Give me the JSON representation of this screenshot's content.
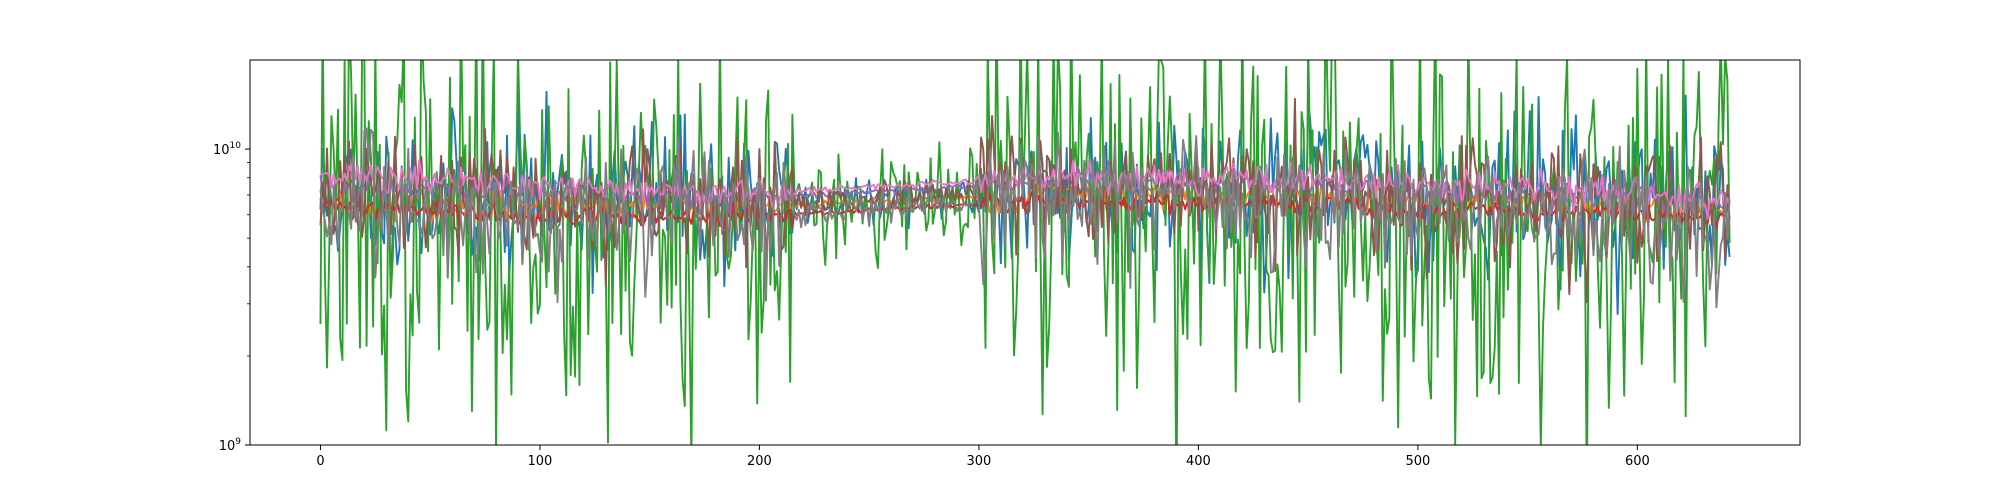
{
  "chart_data": {
    "type": "line",
    "title": "",
    "xlabel": "",
    "ylabel": "",
    "x_range": [
      0,
      642
    ],
    "xlim": [
      -32.1,
      674.1
    ],
    "ylim": [
      1000000000,
      20000000000
    ],
    "yscale": "log",
    "grid": false,
    "legend": "none",
    "x_ticks": [
      0,
      100,
      200,
      300,
      400,
      500,
      600
    ],
    "x_tick_labels": [
      "0",
      "100",
      "200",
      "300",
      "400",
      "500",
      "600"
    ],
    "y_ticks": [
      1000000000,
      10000000000
    ],
    "y_tick_labels": [
      {
        "base": "10",
        "exp": "9"
      },
      {
        "base": "10",
        "exp": "10"
      }
    ],
    "series": [
      {
        "color": "#1f77b4",
        "profile": [
          [
            0,
            6800000000.0
          ],
          [
            100,
            6900000000.0
          ],
          [
            200,
            6700000000.0
          ],
          [
            260,
            6600000000.0
          ],
          [
            340,
            7300000000.0
          ],
          [
            420,
            7400000000.0
          ],
          [
            500,
            7100000000.0
          ],
          [
            600,
            6800000000.0
          ],
          [
            642,
            6400000000.0
          ]
        ],
        "noise": 0.3,
        "seed": 11
      },
      {
        "color": "#ff7f0e",
        "profile": [
          [
            0,
            6600000000.0
          ],
          [
            100,
            6400000000.0
          ],
          [
            200,
            6300000000.0
          ],
          [
            260,
            6700000000.0
          ],
          [
            340,
            7100000000.0
          ],
          [
            420,
            7000000000.0
          ],
          [
            500,
            6800000000.0
          ],
          [
            600,
            6500000000.0
          ],
          [
            642,
            6100000000.0
          ]
        ],
        "noise": 0.05,
        "seed": 23
      },
      {
        "color": "#2ca02c",
        "profile": [
          [
            0,
            6200000000.0
          ],
          [
            100,
            5900000000.0
          ],
          [
            200,
            6000000000.0
          ],
          [
            240,
            6300000000.0
          ],
          [
            330,
            6800000000.0
          ],
          [
            420,
            6500000000.0
          ],
          [
            500,
            6300000000.0
          ],
          [
            600,
            6000000000.0
          ],
          [
            642,
            5600000000.0
          ]
        ],
        "noise": 0.8,
        "seed": 37
      },
      {
        "color": "#d62728",
        "profile": [
          [
            0,
            6400000000.0
          ],
          [
            100,
            6000000000.0
          ],
          [
            200,
            5900000000.0
          ],
          [
            260,
            6300000000.0
          ],
          [
            340,
            6700000000.0
          ],
          [
            420,
            6500000000.0
          ],
          [
            500,
            6300000000.0
          ],
          [
            600,
            6000000000.0
          ],
          [
            642,
            5700000000.0
          ]
        ],
        "noise": 0.04,
        "seed": 41
      },
      {
        "color": "#9467bd",
        "profile": [
          [
            0,
            7600000000.0
          ],
          [
            100,
            7100000000.0
          ],
          [
            200,
            6900000000.0
          ],
          [
            260,
            7200000000.0
          ],
          [
            340,
            7800000000.0
          ],
          [
            420,
            7700000000.0
          ],
          [
            500,
            7300000000.0
          ],
          [
            600,
            6900000000.0
          ],
          [
            642,
            6400000000.0
          ]
        ],
        "noise": 0.05,
        "seed": 53
      },
      {
        "color": "#8c564b",
        "profile": [
          [
            0,
            6900000000.0
          ],
          [
            100,
            6600000000.0
          ],
          [
            200,
            6400000000.0
          ],
          [
            260,
            6800000000.0
          ],
          [
            340,
            7200000000.0
          ],
          [
            420,
            7100000000.0
          ],
          [
            500,
            6700000000.0
          ],
          [
            600,
            6300000000.0
          ],
          [
            642,
            5900000000.0
          ]
        ],
        "noise": 0.22,
        "seed": 67
      },
      {
        "color": "#e377c2",
        "profile": [
          [
            0,
            8400000000.0
          ],
          [
            100,
            7400000000.0
          ],
          [
            200,
            7100000000.0
          ],
          [
            260,
            7500000000.0
          ],
          [
            340,
            8100000000.0
          ],
          [
            420,
            8000000000.0
          ],
          [
            500,
            7600000000.0
          ],
          [
            600,
            7100000000.0
          ],
          [
            642,
            6600000000.0
          ]
        ],
        "noise": 0.06,
        "seed": 71
      },
      {
        "color": "#7f7f7f",
        "profile": [
          [
            0,
            6300000000.0
          ],
          [
            100,
            6100000000.0
          ],
          [
            200,
            6000000000.0
          ],
          [
            260,
            6400000000.0
          ],
          [
            340,
            6900000000.0
          ],
          [
            420,
            6600000000.0
          ],
          [
            500,
            6300000000.0
          ],
          [
            600,
            6000000000.0
          ],
          [
            642,
            5600000000.0
          ]
        ],
        "noise": 0.25,
        "seed": 83
      }
    ]
  }
}
